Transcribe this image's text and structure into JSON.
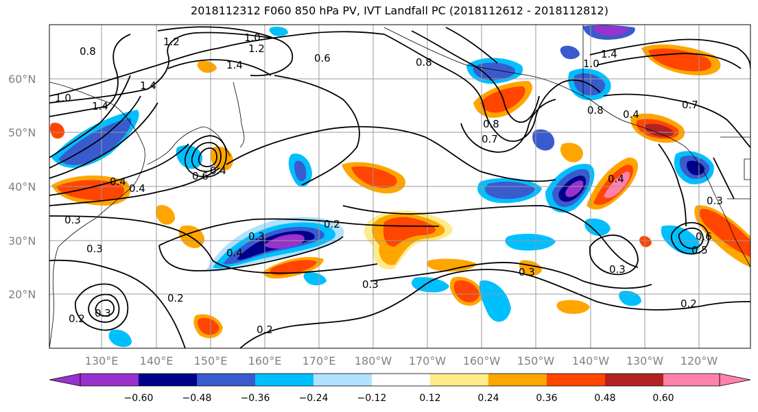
{
  "title": "2018112312 F060 850 hPa PV, IVT Landfall PC (2018112612 - 2018112812)",
  "lat_labels": [
    "60°N",
    "50°N",
    "40°N",
    "30°N",
    "20°N"
  ],
  "lon_labels": [
    "130°E",
    "140°E",
    "150°E",
    "160°E",
    "170°E",
    "180°W",
    "170°W",
    "160°W",
    "150°W",
    "140°W",
    "130°W",
    "120°W"
  ],
  "colorbar": {
    "colors": [
      "#9932cc",
      "#00008b",
      "#3a5bcd",
      "#00bfff",
      "#b0e2ff",
      "#ffffff",
      "#ffeb8a",
      "#ffa500",
      "#ff4500",
      "#b22222",
      "#ff82ab"
    ],
    "tick_labels": [
      "−0.60",
      "−0.48",
      "−0.36",
      "−0.24",
      "−0.12",
      "0.12",
      "0.24",
      "0.36",
      "0.48",
      "0.60"
    ]
  },
  "contour_labels": [
    "1.2",
    "1.0",
    "1.2",
    "0.8",
    "1.4",
    "1.4",
    "0.6",
    "1.0",
    "1.4",
    "0.8",
    "1.4",
    "0.8",
    "0.7",
    "0.7",
    "0.8",
    "0.4",
    "0.6",
    "0.4",
    "0.4",
    "0.4",
    "0.3",
    "0.3",
    "0.2",
    "0.4",
    "0.3",
    "0.3",
    "0.2",
    "0.4",
    "0.3",
    "0.2",
    "0.3",
    "0.3",
    "0.6",
    "0.5",
    "0.2",
    "0.3",
    "0.2",
    "1.0"
  ]
}
